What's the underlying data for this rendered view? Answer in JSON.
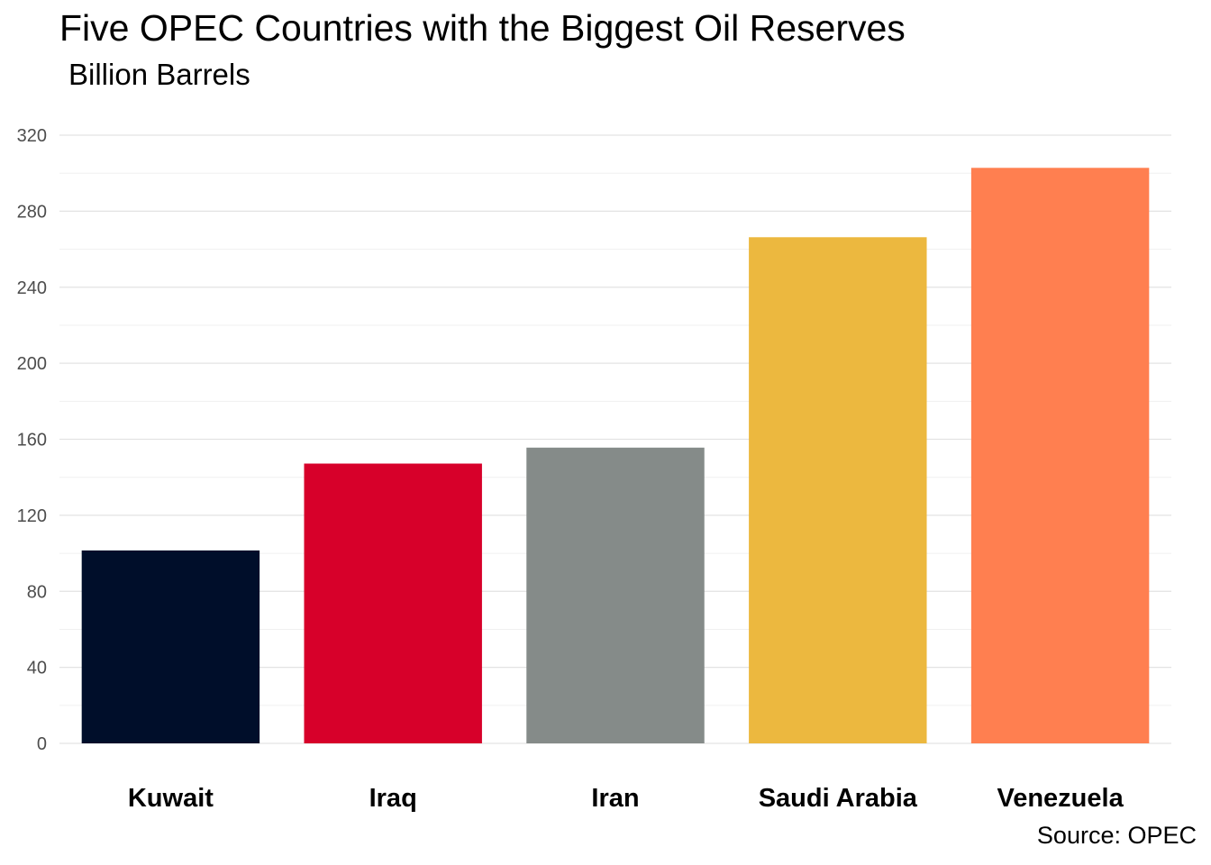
{
  "chart_data": {
    "type": "bar",
    "title": "Five OPEC Countries with the Biggest Oil Reserves",
    "subtitle": "Billion Barrels",
    "caption": "Source: OPEC",
    "xlabel": "",
    "ylabel": "",
    "categories": [
      "Kuwait",
      "Iraq",
      "Iran",
      "Saudi Arabia",
      "Venezuela"
    ],
    "values": [
      101.5,
      147.2,
      155.6,
      266.3,
      302.8
    ],
    "colors": [
      "#000e2a",
      "#d7002a",
      "#858b89",
      "#ecb83f",
      "#ff7f50"
    ],
    "ylim": [
      0,
      320
    ],
    "yticks": [
      0,
      40,
      80,
      120,
      160,
      200,
      240,
      280,
      320
    ],
    "grid": true,
    "legend": "none"
  }
}
